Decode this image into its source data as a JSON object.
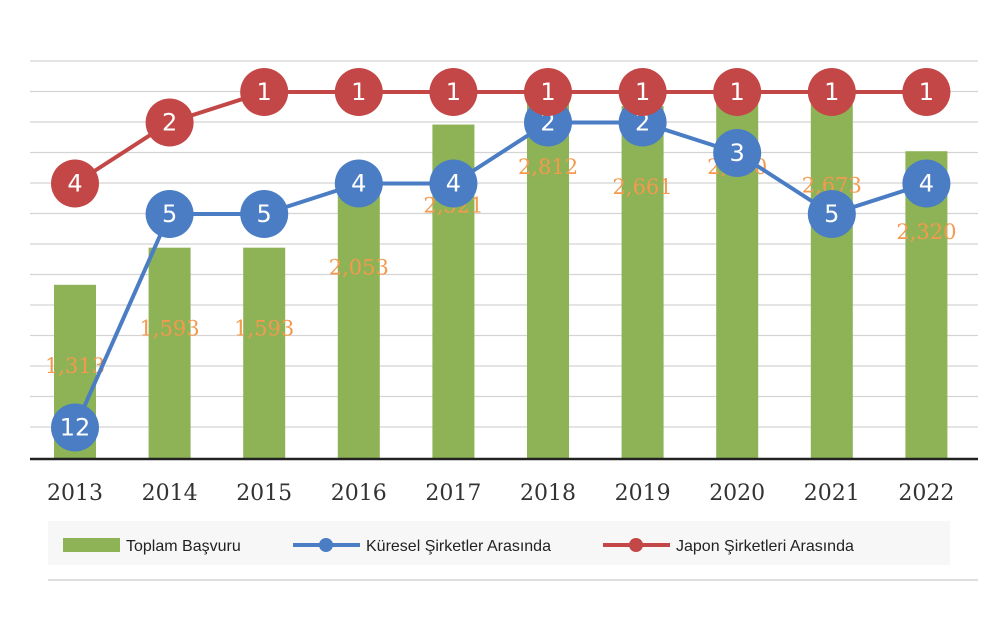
{
  "chart_data": {
    "type": "bar",
    "categories": [
      "2013",
      "2014",
      "2015",
      "2016",
      "2017",
      "2018",
      "2019",
      "2020",
      "2021",
      "2022"
    ],
    "ylim": [
      0,
      3000
    ],
    "grid": true,
    "legend_placement": "bottom",
    "series": [
      {
        "name": "Toplam Başvuru",
        "kind": "bar",
        "color": "#8DB356",
        "values": [
          1313,
          1593,
          1593,
          2053,
          2521,
          2812,
          2661,
          2810,
          2673,
          2320
        ],
        "labels": [
          "1,313",
          "1,593",
          "1,593",
          "2,053",
          "2,521",
          "2,812",
          "2,661",
          "2,810",
          "2,673",
          "2,320"
        ]
      },
      {
        "name": "Küresel Şirketler Arasında",
        "kind": "rank-line",
        "color": "#4A7DC4",
        "values": [
          12,
          5,
          5,
          4,
          4,
          2,
          2,
          3,
          5,
          4
        ]
      },
      {
        "name": "Japon Şirketleri Arasında",
        "kind": "rank-line",
        "color": "#C44747",
        "values": [
          4,
          2,
          1,
          1,
          1,
          1,
          1,
          1,
          1,
          1
        ]
      }
    ]
  }
}
